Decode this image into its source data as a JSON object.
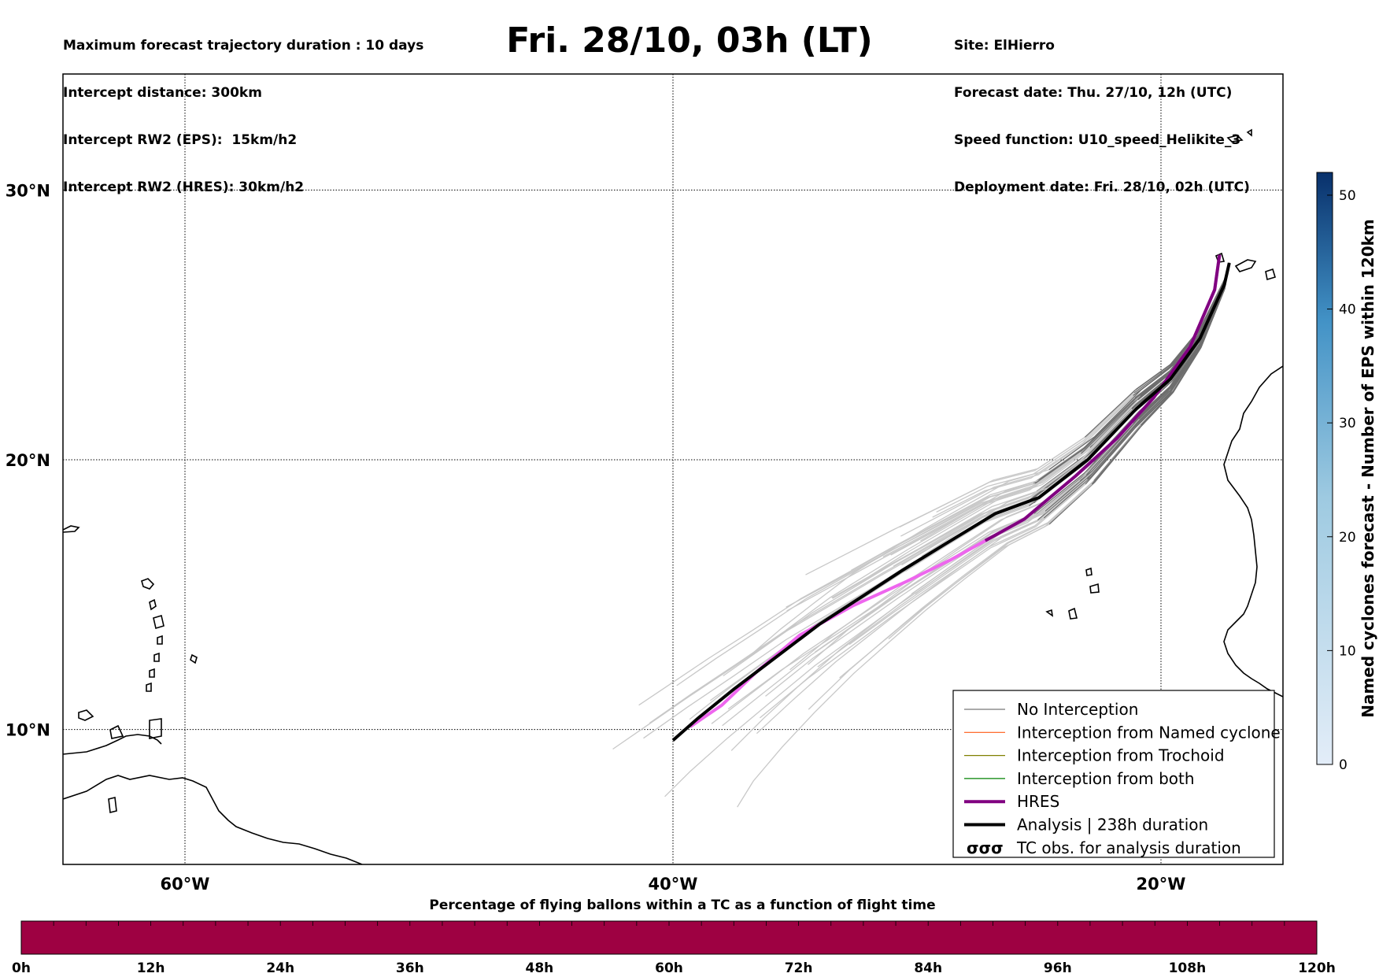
{
  "header": {
    "left_lines": [
      "Maximum forecast trajectory duration : 10 days",
      "Intercept distance: 300km",
      "Intercept RW2 (EPS):  15km/h2",
      "Intercept RW2 (HRES): 30km/h2"
    ],
    "title": "Fri. 28/10, 03h (LT)",
    "right_lines": [
      "Site: ElHierro",
      "Forecast date: Thu. 27/10, 12h (UTC)",
      "Speed function: U10_speed_Helikite_3",
      "Deployment date: Fri. 28/10, 02h (UTC)"
    ]
  },
  "map": {
    "lon_range": [
      -65,
      -15
    ],
    "lat_range": [
      5,
      34.3
    ],
    "lon_ticks": [
      {
        "lon": -60,
        "label": "60°W"
      },
      {
        "lon": -40,
        "label": "40°W"
      },
      {
        "lon": -20,
        "label": "20°W"
      }
    ],
    "lat_ticks": [
      {
        "lat": 30,
        "label": "30°N"
      },
      {
        "lat": 20,
        "label": "20°N"
      },
      {
        "lat": 10,
        "label": "10°N"
      }
    ],
    "colors": {
      "no_interception": "#777777",
      "named_cyclone": "#ff5a14",
      "trochoid": "#808000",
      "both": "#008000",
      "hres": "#800080",
      "hres_light": "#ee66ee",
      "analysis": "#000000",
      "ensemble_light": "#c8c8c8",
      "ensemble_dark": "#6e6e6e"
    }
  },
  "legend": {
    "items": [
      {
        "label": "No Interception",
        "color": "#777777",
        "width": 1.2,
        "type": "line"
      },
      {
        "label": "Interception from Named cyclone",
        "color": "#ff5a14",
        "width": 1.2,
        "type": "line"
      },
      {
        "label": "Interception from Trochoid",
        "color": "#808000",
        "width": 1.2,
        "type": "line"
      },
      {
        "label": "Interception from both",
        "color": "#008000",
        "width": 1.2,
        "type": "line"
      },
      {
        "label": "HRES",
        "color": "#800080",
        "width": 4,
        "type": "line"
      },
      {
        "label": "Analysis | 238h duration",
        "color": "#000000",
        "width": 4,
        "type": "line"
      },
      {
        "label": "TC obs. for analysis duration",
        "color": "#000000",
        "width": 0,
        "type": "symbol",
        "symbol": "σσσ"
      }
    ]
  },
  "colorbar": {
    "label": "Named cyclones forecast - Number of EPS within 120km",
    "min": 0,
    "max": 52,
    "ticks": [
      "0",
      "10",
      "20",
      "30",
      "40",
      "50"
    ],
    "color_low": "#e3edf8",
    "color_high": "#08306b"
  },
  "time_bar": {
    "title": "Percentage of flying ballons within a TC as a function of flight time",
    "color": "#9e0142",
    "ticks": [
      "0h",
      "12h",
      "24h",
      "36h",
      "48h",
      "60h",
      "72h",
      "84h",
      "96h",
      "108h",
      "120h"
    ]
  },
  "chart_data": {
    "type": "line",
    "title": "Fri. 28/10, 03h (LT)",
    "xlabel": "",
    "ylabel": "",
    "x_range_lon": [
      -65,
      -15
    ],
    "y_range_lat": [
      5,
      34.3
    ],
    "grid": true,
    "legend_position": "lower-right",
    "series": [
      {
        "name": "Analysis | 238h duration",
        "points": [
          [
            -17.2,
            27.3
          ],
          [
            -17.4,
            26.5
          ],
          [
            -18.4,
            24.5
          ],
          [
            -19.6,
            23.0
          ],
          [
            -21.0,
            21.9
          ],
          [
            -23.0,
            20.0
          ],
          [
            -25.0,
            18.6
          ],
          [
            -26.8,
            18.0
          ],
          [
            -28.8,
            16.9
          ],
          [
            -30.6,
            15.9
          ],
          [
            -32.3,
            14.9
          ],
          [
            -34.0,
            13.9
          ],
          [
            -35.9,
            12.6
          ],
          [
            -37.5,
            11.5
          ],
          [
            -39.0,
            10.4
          ],
          [
            -40.0,
            9.6
          ]
        ]
      },
      {
        "name": "HRES",
        "points": [
          [
            -17.6,
            27.6
          ],
          [
            -17.8,
            26.3
          ],
          [
            -18.8,
            24.2
          ],
          [
            -20.3,
            22.3
          ],
          [
            -21.8,
            20.8
          ],
          [
            -23.5,
            19.4
          ],
          [
            -25.6,
            17.8
          ],
          [
            -27.2,
            17.0
          ],
          [
            -28.6,
            16.3
          ],
          [
            -30.4,
            15.5
          ],
          [
            -32.6,
            14.6
          ],
          [
            -34.8,
            13.5
          ],
          [
            -36.5,
            12.2
          ],
          [
            -38.0,
            10.9
          ],
          [
            -39.3,
            10.1
          ]
        ]
      }
    ]
  }
}
